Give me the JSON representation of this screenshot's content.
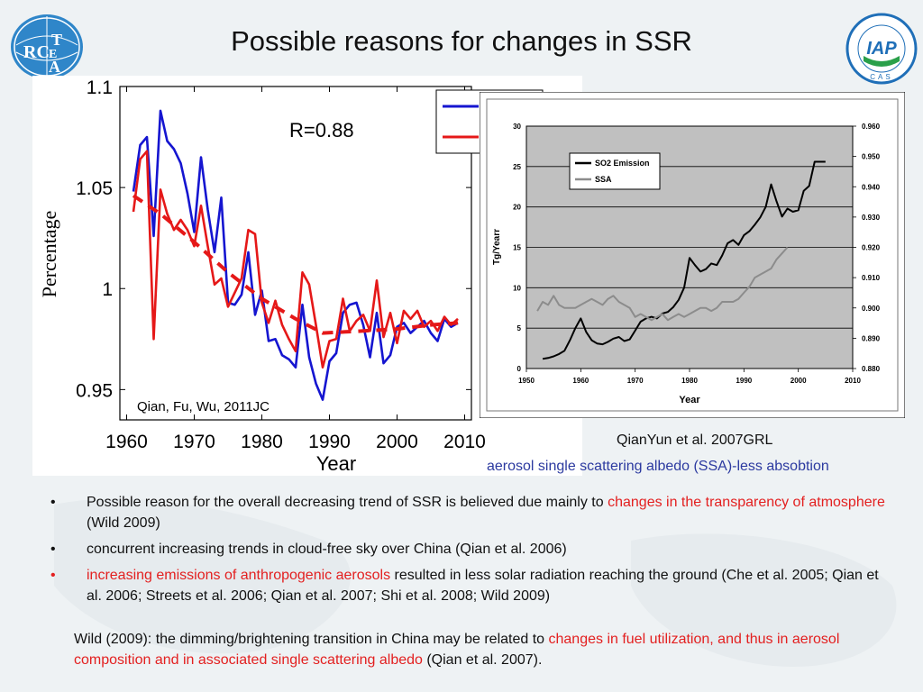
{
  "slide": {
    "title": "Possible reasons for changes in SSR",
    "logo_left_text": "RCE TEA",
    "logo_right_text": "IAP",
    "logo_right_sub": "CAS"
  },
  "chart_ssr": {
    "type": "line",
    "title": "",
    "xlabel": "Year",
    "ylabel": "Percentage",
    "xlim": [
      1959,
      2011
    ],
    "ylim": [
      0.935,
      1.1
    ],
    "xticks": [
      1960,
      1970,
      1980,
      1990,
      2000,
      2010
    ],
    "yticks": [
      0.95,
      1,
      1.05,
      1.1
    ],
    "ytick_labels": [
      "0.95",
      "1",
      "1.05",
      "1.1"
    ],
    "annotation": "R=0.88",
    "citation": "Qian, Fu, Wu, 2011JC",
    "legend": "top-right",
    "colors": {
      "blue": "#1515d0",
      "red": "#e51818"
    },
    "series": [
      {
        "color": "#1515d0",
        "style": "solid",
        "x": [
          1961,
          1962,
          1963,
          1964,
          1965,
          1966,
          1967,
          1968,
          1969,
          1970,
          1971,
          1972,
          1973,
          1974,
          1975,
          1976,
          1977,
          1978,
          1979,
          1980,
          1981,
          1982,
          1983,
          1984,
          1985,
          1986,
          1987,
          1988,
          1989,
          1990,
          1991,
          1992,
          1993,
          1994,
          1995,
          1996,
          1997,
          1998,
          1999,
          2000,
          2001,
          2002,
          2003,
          2004,
          2005,
          2006,
          2007,
          2008,
          2009
        ],
        "y": [
          1.048,
          1.071,
          1.075,
          1.026,
          1.088,
          1.073,
          1.069,
          1.062,
          1.047,
          1.028,
          1.065,
          1.039,
          1.018,
          1.045,
          0.993,
          0.992,
          0.997,
          1.018,
          0.987,
          0.999,
          0.974,
          0.975,
          0.967,
          0.965,
          0.961,
          0.992,
          0.966,
          0.953,
          0.945,
          0.964,
          0.968,
          0.988,
          0.992,
          0.993,
          0.982,
          0.966,
          0.988,
          0.963,
          0.967,
          0.981,
          0.983,
          0.978,
          0.981,
          0.984,
          0.978,
          0.974,
          0.985,
          0.981,
          0.983
        ]
      },
      {
        "color": "#e51818",
        "style": "solid",
        "x": [
          1961,
          1962,
          1963,
          1964,
          1965,
          1966,
          1967,
          1968,
          1969,
          1970,
          1971,
          1972,
          1973,
          1974,
          1975,
          1976,
          1977,
          1978,
          1979,
          1980,
          1981,
          1982,
          1983,
          1984,
          1985,
          1986,
          1987,
          1988,
          1989,
          1990,
          1991,
          1992,
          1993,
          1994,
          1995,
          1996,
          1997,
          1998,
          1999,
          2000,
          2001,
          2002,
          2003,
          2004,
          2005,
          2006,
          2007,
          2008,
          2009
        ],
        "y": [
          1.038,
          1.064,
          1.068,
          0.975,
          1.049,
          1.037,
          1.029,
          1.034,
          1.029,
          1.021,
          1.041,
          1.021,
          1.002,
          1.005,
          0.991,
          0.998,
          1.005,
          1.029,
          1.027,
          0.993,
          0.983,
          0.994,
          0.982,
          0.975,
          0.969,
          1.008,
          1.002,
          0.982,
          0.961,
          0.974,
          0.975,
          0.995,
          0.979,
          0.984,
          0.987,
          0.979,
          1.004,
          0.976,
          0.988,
          0.973,
          0.989,
          0.985,
          0.989,
          0.981,
          0.984,
          0.979,
          0.986,
          0.982,
          0.985
        ]
      },
      {
        "color": "#e51818",
        "style": "dashed",
        "x": [
          1961,
          1965,
          1970,
          1975,
          1980,
          1985,
          1989,
          1995,
          2000,
          2005,
          2009
        ],
        "y": [
          1.046,
          1.037,
          1.023,
          1.008,
          0.995,
          0.985,
          0.978,
          0.979,
          0.98,
          0.982,
          0.983
        ]
      }
    ]
  },
  "chart_so2": {
    "type": "line",
    "xlabel": "Year",
    "ylabel": "Tg/Yearr",
    "xlim": [
      1950,
      2010
    ],
    "ylim_left": [
      0,
      30
    ],
    "ylim_right": [
      0.88,
      0.96
    ],
    "xticks": [
      1950,
      1960,
      1970,
      1980,
      1990,
      2000,
      2010
    ],
    "xtick_labels": [
      "1950",
      "1960",
      "1970",
      "1980",
      "1990",
      "2000",
      "2010"
    ],
    "yticks_left": [
      0,
      5,
      10,
      15,
      20,
      25,
      30
    ],
    "ytick_labels_left": [
      "0",
      "5",
      "10",
      "15",
      "20",
      "25",
      "30"
    ],
    "yticks_right": [
      0.88,
      0.89,
      0.9,
      0.91,
      0.92,
      0.93,
      0.94,
      0.95,
      0.96
    ],
    "ytick_labels_right": [
      "0.880",
      "0.890",
      "0.900",
      "0.910",
      "0.920",
      "0.930",
      "0.940",
      "0.950",
      "0.960"
    ],
    "legend": "top-left",
    "citation": "QianYun et al. 2007GRL",
    "caption": "aerosol single scattering albedo (SSA)-less absobtion",
    "colors": {
      "background": "#c0c0c0",
      "so2": "#000000",
      "ssa": "#8c8c8c"
    },
    "series": [
      {
        "name": "SO2 Emission",
        "axis": "left",
        "color": "#000000",
        "x": [
          1953,
          1954,
          1955,
          1956,
          1957,
          1958,
          1959,
          1960,
          1961,
          1962,
          1963,
          1964,
          1965,
          1966,
          1967,
          1968,
          1969,
          1970,
          1971,
          1972,
          1973,
          1974,
          1975,
          1976,
          1977,
          1978,
          1979,
          1980,
          1981,
          1982,
          1983,
          1984,
          1985,
          1986,
          1987,
          1988,
          1989,
          1990,
          1991,
          1992,
          1993,
          1994,
          1995,
          1996,
          1997,
          1998,
          1999,
          2000,
          2001,
          2002,
          2003,
          2004,
          2005
        ],
        "y": [
          1.2,
          1.3,
          1.5,
          1.8,
          2.2,
          3.5,
          5.0,
          6.2,
          4.5,
          3.5,
          3.1,
          3.0,
          3.3,
          3.7,
          3.9,
          3.4,
          3.6,
          4.7,
          5.8,
          6.2,
          6.4,
          6.2,
          6.8,
          7.0,
          7.6,
          8.5,
          10.0,
          13.7,
          12.8,
          12.0,
          12.3,
          13.0,
          12.8,
          14.0,
          15.5,
          15.9,
          15.3,
          16.5,
          17.0,
          17.8,
          18.7,
          20.0,
          22.8,
          20.7,
          18.8,
          19.8,
          19.4,
          19.6,
          22.0,
          22.6,
          25.6,
          25.6,
          25.6
        ]
      },
      {
        "name": "SSA",
        "axis": "right",
        "color": "#8c8c8c",
        "x": [
          1952,
          1953,
          1954,
          1955,
          1956,
          1957,
          1958,
          1959,
          1960,
          1961,
          1962,
          1963,
          1964,
          1965,
          1966,
          1967,
          1968,
          1969,
          1970,
          1971,
          1972,
          1973,
          1974,
          1975,
          1976,
          1977,
          1978,
          1979,
          1980,
          1981,
          1982,
          1983,
          1984,
          1985,
          1986,
          1987,
          1988,
          1989,
          1990,
          1991,
          1992,
          1993,
          1994,
          1995,
          1996,
          1997,
          1998
        ],
        "y": [
          0.899,
          0.902,
          0.901,
          0.904,
          0.901,
          0.9,
          0.9,
          0.9,
          0.901,
          0.902,
          0.903,
          0.902,
          0.901,
          0.903,
          0.904,
          0.902,
          0.901,
          0.9,
          0.897,
          0.898,
          0.897,
          0.896,
          0.897,
          0.898,
          0.896,
          0.897,
          0.898,
          0.897,
          0.898,
          0.899,
          0.9,
          0.9,
          0.899,
          0.9,
          0.902,
          0.902,
          0.902,
          0.903,
          0.905,
          0.907,
          0.91,
          0.911,
          0.912,
          0.913,
          0.916,
          0.918,
          0.92
        ]
      }
    ]
  },
  "bullets": [
    {
      "marker": "•",
      "parts": [
        {
          "text": "Possible reason for the overall decreasing trend of SSR is believed due mainly to ",
          "red": false
        },
        {
          "text": "changes in the transparency of atmosphere",
          "red": true
        },
        {
          "text": " (Wild 2009)",
          "red": false
        }
      ]
    },
    {
      "marker": "•",
      "parts": [
        {
          "text": "concurrent increasing trends in cloud-free sky over China (Qian et al. 2006)",
          "red": false
        }
      ]
    },
    {
      "marker": "•",
      "marker_red": true,
      "parts": [
        {
          "text": "increasing emissions of anthropogenic aerosols",
          "red": true
        },
        {
          "text": " resulted in less solar radiation reaching the ground (Che et al. 2005; Qian et al. 2006; Streets et al. 2006; Qian et al. 2007; Shi et al. 2008; Wild 2009)",
          "red": false
        }
      ]
    }
  ],
  "note": {
    "parts": [
      {
        "text": "Wild (2009): the dimming/brightening transition in China may be related to ",
        "red": false
      },
      {
        "text": "changes in fuel utilization, and thus in aerosol composition and in associated single scattering albedo",
        "red": true
      },
      {
        "text": " (Qian et al. 2007).",
        "red": false
      }
    ]
  }
}
